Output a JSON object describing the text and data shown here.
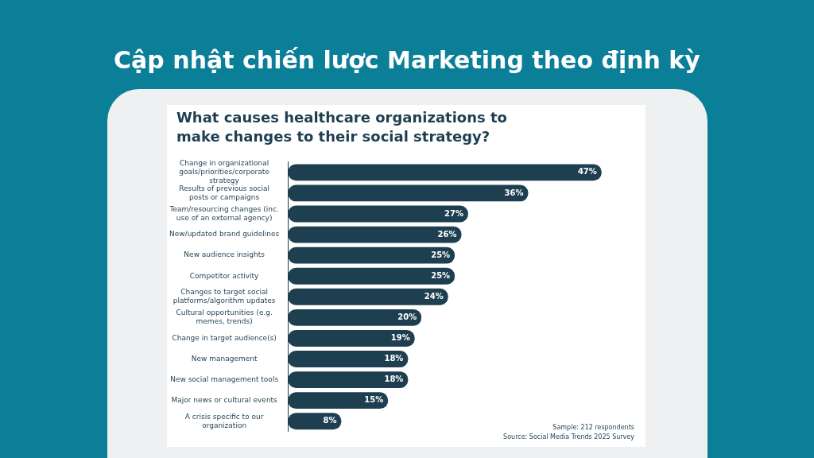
{
  "chart_data": {
    "type": "bar",
    "orientation": "horizontal",
    "title": "Cập nhật chiến lược Marketing theo định kỳ",
    "subtitle": "What causes healthcare organizations to make changes to their social strategy?",
    "categories": [
      "Change in organizational goals/priorities/corporate strategy",
      "Results of previous social posts or campaigns",
      "Team/resourcing changes (inc. use of an external agency)",
      "New/updated brand guidelines",
      "New audience insights",
      "Competitor activity",
      "Changes to target social platforms/algorithm updates",
      "Cultural opportunities (e.g. memes, trends)",
      "Change in target audience(s)",
      "New management",
      "New social management tools",
      "Major news or cultural events",
      "A crisis specific to our organization"
    ],
    "values": [
      47,
      36,
      27,
      26,
      25,
      25,
      24,
      20,
      19,
      18,
      18,
      15,
      8
    ],
    "value_labels": [
      "47%",
      "36%",
      "27%",
      "26%",
      "25%",
      "25%",
      "24%",
      "20%",
      "19%",
      "18%",
      "18%",
      "15%",
      "8%"
    ],
    "color": "#1e3f50",
    "grid": false,
    "legend": false,
    "annotations": [
      "Sample: 212 respondents",
      "Source: Social Media Trends 2025 Survey"
    ]
  }
}
